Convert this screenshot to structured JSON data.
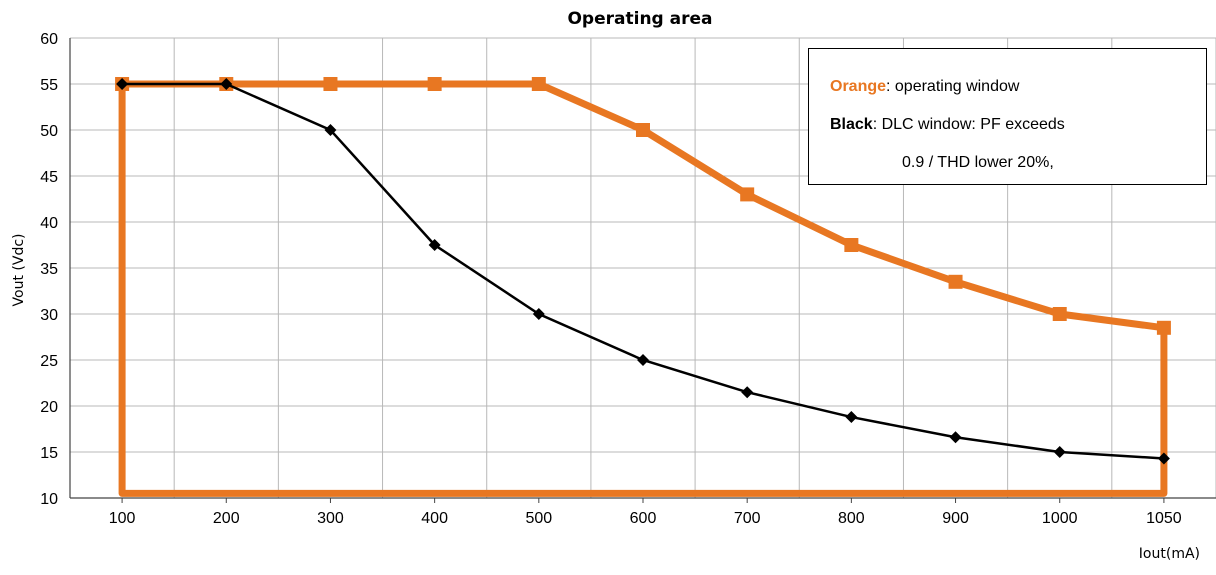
{
  "chart_data": {
    "type": "line",
    "title": "Operating area",
    "xlabel": "Iout(mA)",
    "ylabel": "Vout (Vdc)",
    "categories": [
      "100",
      "200",
      "300",
      "400",
      "500",
      "600",
      "700",
      "800",
      "900",
      "1000",
      "1050"
    ],
    "ylim": [
      10,
      60
    ],
    "yticks": [
      "10",
      "15",
      "20",
      "25",
      "30",
      "35",
      "40",
      "45",
      "50",
      "55",
      "60"
    ],
    "grid": true,
    "legend_position": "top-right",
    "series": [
      {
        "name": "Orange",
        "color": "#E87722",
        "marker": "square",
        "closed_region": true,
        "floor": 10.5,
        "values": [
          55,
          55,
          55,
          55,
          55,
          50,
          43,
          37.5,
          33.5,
          30,
          28.5
        ]
      },
      {
        "name": "Black",
        "color": "#000000",
        "marker": "diamond",
        "values": [
          55,
          55,
          50,
          37.5,
          30,
          25,
          21.5,
          18.8,
          16.6,
          15,
          14.3
        ]
      }
    ],
    "legend": [
      {
        "key": "Orange",
        "text": ": operating window",
        "color": "#E87722"
      },
      {
        "key": "Black",
        "text": ": DLC window: PF exceeds",
        "color": "#000000"
      },
      {
        "key": "",
        "text": "0.9 / THD lower 20%,",
        "color": "#000000"
      }
    ]
  }
}
